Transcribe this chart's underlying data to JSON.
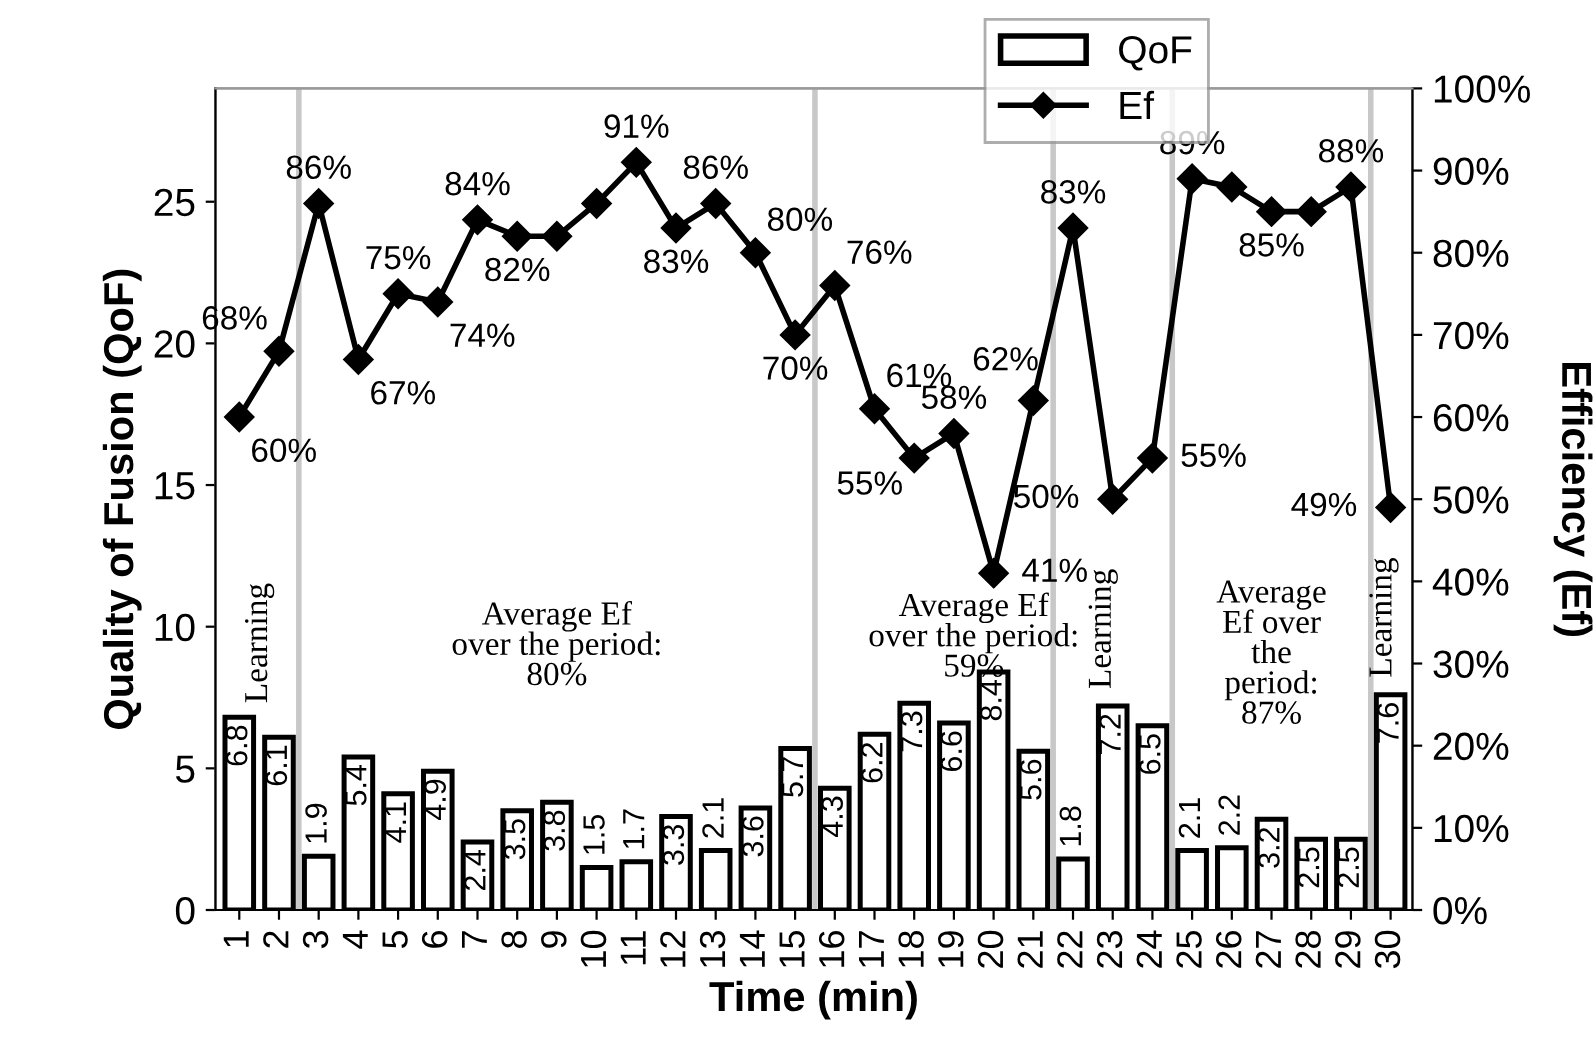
{
  "chart_data": {
    "type": "bar",
    "x": [
      1,
      2,
      3,
      4,
      5,
      6,
      7,
      8,
      9,
      10,
      11,
      12,
      13,
      14,
      15,
      16,
      17,
      18,
      19,
      20,
      21,
      22,
      23,
      24,
      25,
      26,
      27,
      28,
      29,
      30
    ],
    "xlim": [
      0.4,
      30.55
    ],
    "xticks": [
      1,
      2,
      3,
      4,
      5,
      6,
      7,
      8,
      9,
      10,
      11,
      12,
      13,
      14,
      15,
      16,
      17,
      18,
      19,
      20,
      21,
      22,
      23,
      24,
      25,
      26,
      27,
      28,
      29,
      30
    ],
    "series": [
      {
        "name": "QoF",
        "color": "#ffffff",
        "values": [
          6.8,
          6.1,
          1.9,
          5.4,
          4.1,
          4.9,
          2.4,
          3.5,
          3.8,
          1.5,
          1.7,
          3.3,
          2.1,
          3.6,
          5.7,
          4.3,
          6.2,
          7.3,
          6.6,
          8.4,
          5.6,
          1.8,
          7.2,
          6.5,
          2.1,
          2.2,
          3.2,
          2.5,
          2.5,
          7.6
        ],
        "data_labels": true
      },
      {
        "name": "Ef",
        "type": "line",
        "axis": "y2",
        "color": "#000000",
        "marker": "diamond",
        "values": [
          60,
          68,
          86,
          67,
          75,
          74,
          84,
          82,
          82,
          86,
          91,
          83,
          86,
          80,
          70,
          76,
          61,
          55,
          58,
          41,
          62,
          83,
          50,
          55,
          89,
          88,
          85,
          85,
          88,
          49
        ],
        "value_labels": [
          "60%",
          "68%",
          "86%",
          "67%",
          "75%",
          "74%",
          "84%",
          "82%",
          null,
          null,
          "91%",
          "83%",
          "86%",
          "80%",
          "70%",
          "76%",
          "61%",
          "55%",
          "58%",
          "41%",
          "62%",
          "83%",
          "50%",
          "55%",
          "89%",
          null,
          "85%",
          null,
          "88%",
          "49%"
        ]
      }
    ],
    "xlabel": "Time (min)",
    "ylabel": "Quality of Fusion (QoF)",
    "y2label": "Efficiency (Ef)",
    "ylim": [
      0,
      29
    ],
    "yticks": [
      0,
      5,
      10,
      15,
      20,
      25
    ],
    "y2lim": [
      0,
      100
    ],
    "y2ticks": [
      {
        "value": 0,
        "label": "0%"
      },
      {
        "value": 10,
        "label": "10%"
      },
      {
        "value": 20,
        "label": "20%"
      },
      {
        "value": 30,
        "label": "30%"
      },
      {
        "value": 40,
        "label": "40%"
      },
      {
        "value": 50,
        "label": "50%"
      },
      {
        "value": 60,
        "label": "60%"
      },
      {
        "value": 70,
        "label": "70%"
      },
      {
        "value": 80,
        "label": "80%"
      },
      {
        "value": 90,
        "label": "90%"
      },
      {
        "value": 100,
        "label": "100%"
      }
    ],
    "ref_lines": [
      {
        "axis": "x",
        "value": 2.5,
        "color": "#c8c8c8"
      },
      {
        "axis": "x",
        "value": 15.5,
        "color": "#c8c8c8"
      },
      {
        "axis": "x",
        "value": 21.5,
        "color": "#c8c8c8"
      },
      {
        "axis": "x",
        "value": 24.5,
        "color": "#c8c8c8"
      },
      {
        "axis": "x",
        "value": 29.5,
        "color": "#c8c8c8"
      }
    ],
    "annotations": [
      "Learning",
      "Average Ef\nover the period:\n80%",
      "Average Ef\nover the period:\n59%",
      "Learning",
      "Average\nEf over\nthe\nperiod:\n87%",
      "Learning"
    ],
    "legend": "top",
    "grid": false
  }
}
